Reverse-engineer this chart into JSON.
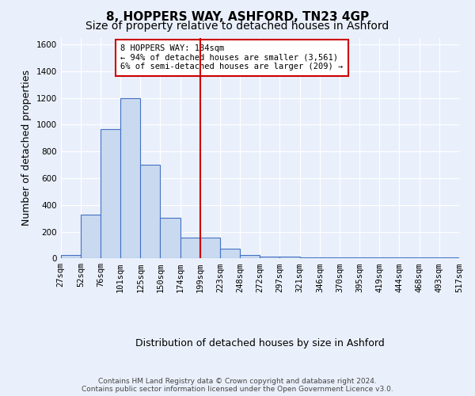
{
  "title": "8, HOPPERS WAY, ASHFORD, TN23 4GP",
  "subtitle": "Size of property relative to detached houses in Ashford",
  "xlabel": "Distribution of detached houses by size in Ashford",
  "ylabel": "Number of detached properties",
  "bar_values": [
    25,
    325,
    965,
    1200,
    700,
    305,
    155,
    155,
    75,
    25,
    15,
    15,
    10,
    10,
    10,
    10,
    10,
    10,
    10,
    10
  ],
  "bin_labels": [
    "27sqm",
    "52sqm",
    "76sqm",
    "101sqm",
    "125sqm",
    "150sqm",
    "174sqm",
    "199sqm",
    "223sqm",
    "248sqm",
    "272sqm",
    "297sqm",
    "321sqm",
    "346sqm",
    "370sqm",
    "395sqm",
    "419sqm",
    "444sqm",
    "468sqm",
    "493sqm",
    "517sqm"
  ],
  "bar_color": "#c9d9f0",
  "bar_edge_color": "#4472c4",
  "vline_x": 6.5,
  "vline_color": "#cc0000",
  "annotation_text": "8 HOPPERS WAY: 184sqm\n← 94% of detached houses are smaller (3,561)\n6% of semi-detached houses are larger (209) →",
  "annotation_box_color": "#ffffff",
  "annotation_box_edge": "#cc0000",
  "ylim": [
    0,
    1650
  ],
  "yticks": [
    0,
    200,
    400,
    600,
    800,
    1000,
    1200,
    1400,
    1600
  ],
  "bg_color": "#eaf0fb",
  "footer_text": "Contains HM Land Registry data © Crown copyright and database right 2024.\nContains public sector information licensed under the Open Government Licence v3.0.",
  "grid_color": "#ffffff",
  "title_fontsize": 11,
  "subtitle_fontsize": 10,
  "tick_fontsize": 7.5,
  "ylabel_fontsize": 9,
  "xlabel_fontsize": 9
}
